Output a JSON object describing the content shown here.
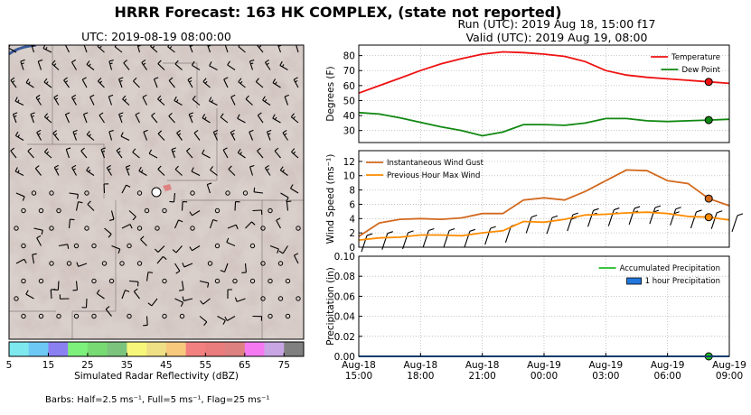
{
  "header": {
    "main_title": "HRRR Forecast: 163 HK COMPLEX, (state not reported)",
    "run_line": "Run (UTC): 2019 Aug 18, 15:00 f17",
    "valid_line": "Valid (UTC): 2019 Aug 19, 08:00"
  },
  "map": {
    "title": "UTC: 2019-08-19 08:00:00",
    "colorbar_label": "Simulated Radar Reflectivity (dBZ)",
    "colorbar_ticks": [
      "5",
      "15",
      "25",
      "35",
      "45",
      "55",
      "65",
      "75"
    ],
    "colorbar_colors": [
      "#7de8ee",
      "#6ec8f5",
      "#8a80f2",
      "#7df07b",
      "#77da72",
      "#7cc47d",
      "#f6f77a",
      "#efdf85",
      "#f7c97d",
      "#f38080",
      "#e97c7c",
      "#dc8080",
      "#f57af2",
      "#c7a6e3",
      "#808080"
    ],
    "barb_note": "Barbs: Half=2.5 ms⁻¹, Full=5 ms⁻¹, Flag=25 ms⁻¹"
  },
  "chart_data": [
    {
      "type": "line",
      "ylabel": "Degrees (F)",
      "ylim": [
        22,
        87
      ],
      "yticks": [
        "30",
        "40",
        "50",
        "60",
        "70",
        "80"
      ],
      "grid": true,
      "legend_position": "top-right",
      "x_hours": [
        0,
        1,
        2,
        3,
        4,
        5,
        6,
        7,
        8,
        9,
        10,
        11,
        12,
        13,
        14,
        15,
        16,
        17,
        18
      ],
      "series": [
        {
          "name": "Temperature",
          "color": "#ee1111",
          "values": [
            55,
            60,
            65,
            70,
            74.5,
            78,
            81,
            82.5,
            82,
            81,
            79.5,
            76,
            70,
            67,
            65.5,
            64.5,
            63.5,
            62.5,
            61.5
          ]
        },
        {
          "name": "Dew Point",
          "color": "#118811",
          "values": [
            42,
            41,
            38.5,
            35.5,
            32.5,
            30,
            26.5,
            29,
            34,
            34,
            33.5,
            35,
            38,
            38,
            36.5,
            36,
            36.5,
            37,
            37.5
          ]
        }
      ],
      "marker_hour": 17
    },
    {
      "type": "line",
      "ylabel": "Wind Speed (ms⁻¹)",
      "ylim": [
        0,
        13.5
      ],
      "yticks": [
        "0",
        "2",
        "4",
        "6",
        "8",
        "10",
        "12"
      ],
      "grid": true,
      "legend_position": "top-left",
      "x_hours": [
        0,
        1,
        2,
        3,
        4,
        5,
        6,
        7,
        8,
        9,
        10,
        11,
        12,
        13,
        14,
        15,
        16,
        17,
        18
      ],
      "series": [
        {
          "name": "Instantaneous Wind Gust",
          "color": "#d2691e",
          "values": [
            1.5,
            3.4,
            3.9,
            4.0,
            3.9,
            4.1,
            4.7,
            4.7,
            6.6,
            6.9,
            6.6,
            7.8,
            9.3,
            10.8,
            10.7,
            9.3,
            8.9,
            6.8,
            5.8
          ]
        },
        {
          "name": "Previous Hour Max Wind",
          "color": "#ff8c00",
          "values": [
            1.0,
            1.3,
            1.4,
            1.7,
            1.7,
            1.6,
            2.0,
            2.3,
            3.6,
            3.5,
            3.9,
            4.5,
            4.6,
            4.8,
            4.9,
            4.7,
            4.3,
            4.2,
            3.8
          ]
        }
      ],
      "marker_hour": 17
    },
    {
      "type": "line",
      "ylabel": "Precipitation (in)",
      "ylim": [
        0,
        0.1
      ],
      "yticks": [
        "0.00",
        "0.02",
        "0.04",
        "0.06",
        "0.08",
        "0.10"
      ],
      "grid": true,
      "legend_position": "top-right",
      "series": [
        {
          "name": "Accumulated Precipitation",
          "color": "#22bb22",
          "values": [
            0,
            0,
            0,
            0,
            0,
            0,
            0,
            0,
            0,
            0,
            0,
            0,
            0,
            0,
            0,
            0,
            0,
            0,
            0
          ]
        },
        {
          "name": "1 hour Precipitation",
          "color": "#2277dd",
          "values": [
            0,
            0,
            0,
            0,
            0,
            0,
            0,
            0,
            0,
            0,
            0,
            0,
            0,
            0,
            0,
            0,
            0,
            0,
            0
          ]
        }
      ],
      "xtick_labels": [
        [
          "Aug-18",
          "15:00"
        ],
        [
          "Aug-18",
          "18:00"
        ],
        [
          "Aug-18",
          "21:00"
        ],
        [
          "Aug-19",
          "00:00"
        ],
        [
          "Aug-19",
          "03:00"
        ],
        [
          "Aug-19",
          "06:00"
        ],
        [
          "Aug-19",
          "09:00"
        ]
      ],
      "marker_hour": 17
    }
  ]
}
